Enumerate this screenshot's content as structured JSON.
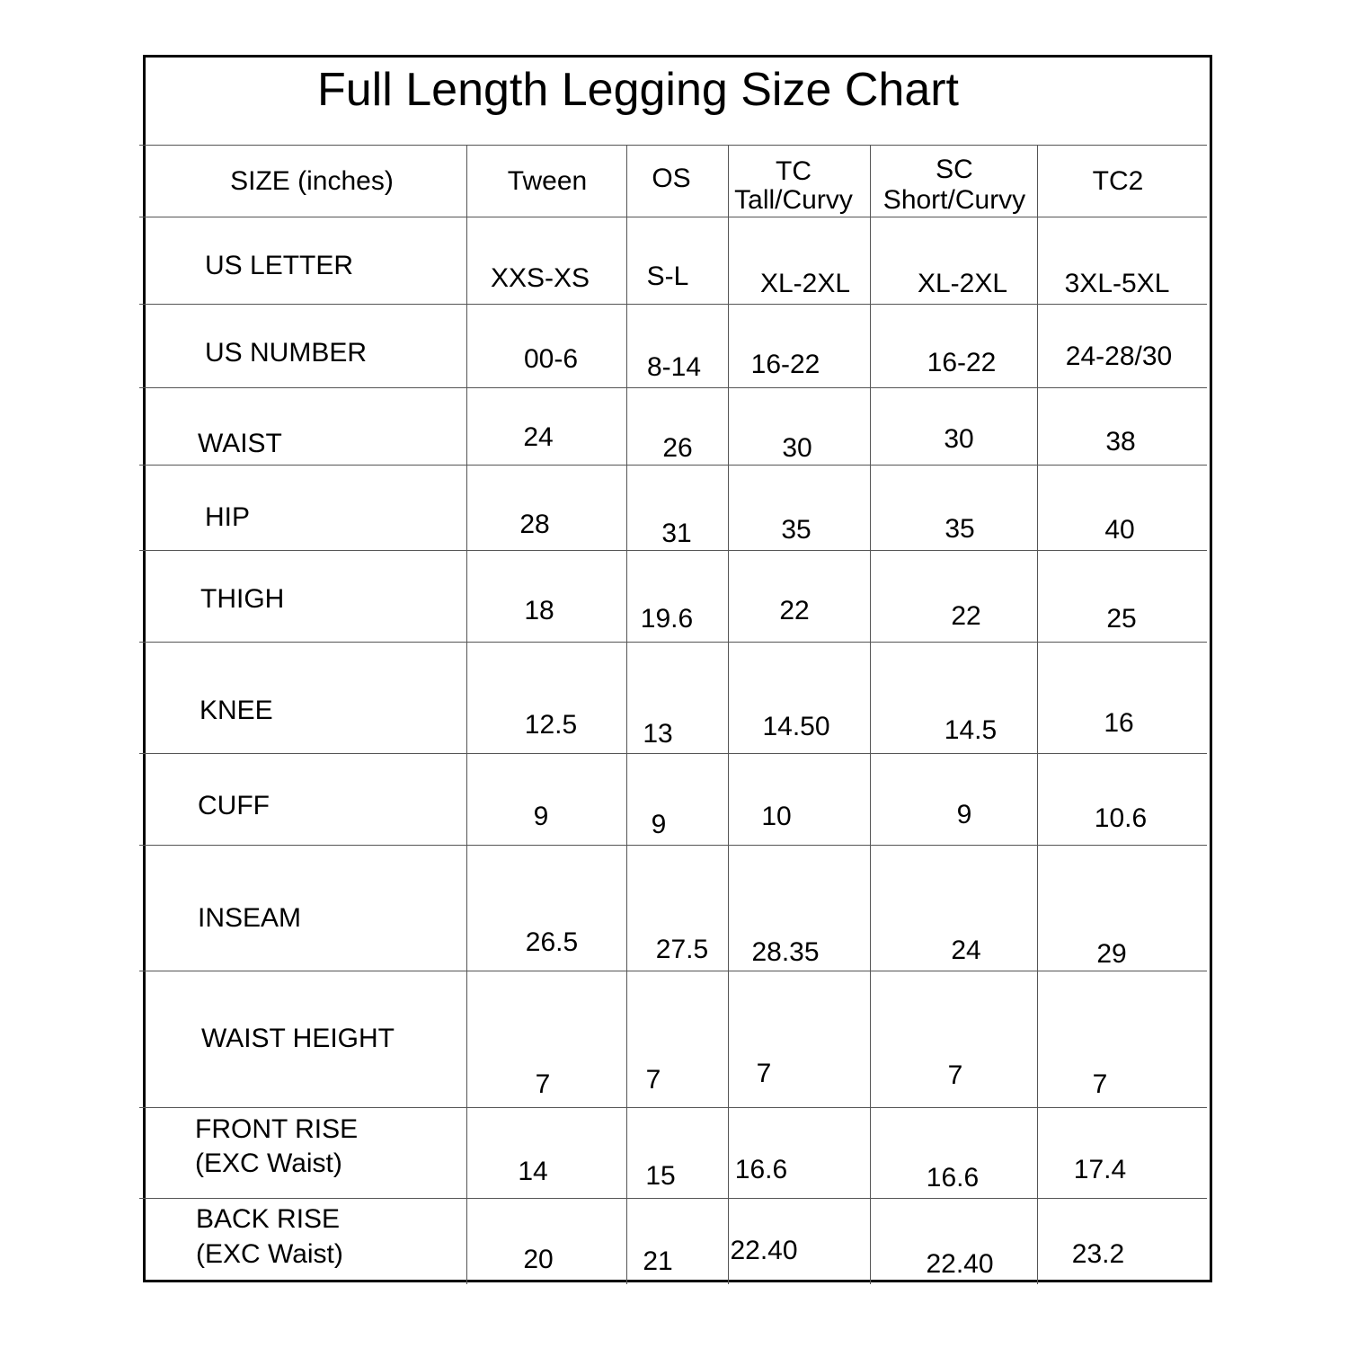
{
  "title": "Full Length Legging Size Chart",
  "header": {
    "size_label": "SIZE (inches)",
    "columns": [
      {
        "line1": "Tween",
        "line2": ""
      },
      {
        "line1": "OS",
        "line2": ""
      },
      {
        "line1": "TC",
        "line2": "Tall/Curvy"
      },
      {
        "line1": "SC",
        "line2": "Short/Curvy"
      },
      {
        "line1": "TC2",
        "line2": ""
      }
    ]
  },
  "rows": [
    {
      "label": [
        "US LETTER"
      ],
      "values": [
        "XXS-XS",
        "S-L",
        "XL-2XL",
        "XL-2XL",
        "3XL-5XL"
      ]
    },
    {
      "label": [
        "US NUMBER"
      ],
      "values": [
        "00-6",
        "8-14",
        "16-22",
        "16-22",
        "24-28/30"
      ]
    },
    {
      "label": [
        "WAIST"
      ],
      "values": [
        "24",
        "26",
        "30",
        "30",
        "38"
      ]
    },
    {
      "label": [
        "HIP"
      ],
      "values": [
        "28",
        "31",
        "35",
        "35",
        "40"
      ]
    },
    {
      "label": [
        "THIGH"
      ],
      "values": [
        "18",
        "19.6",
        "22",
        "22",
        "25"
      ]
    },
    {
      "label": [
        "KNEE"
      ],
      "values": [
        "12.5",
        "13",
        "14.50",
        "14.5",
        "16"
      ]
    },
    {
      "label": [
        "CUFF"
      ],
      "values": [
        "9",
        "9",
        "10",
        "9",
        "10.6"
      ]
    },
    {
      "label": [
        "INSEAM"
      ],
      "values": [
        "26.5",
        "27.5",
        "28.35",
        "24",
        "29"
      ]
    },
    {
      "label": [
        "WAIST HEIGHT"
      ],
      "values": [
        "7",
        "7",
        "7",
        "7",
        "7"
      ]
    },
    {
      "label": [
        "FRONT RISE",
        "(EXC Waist)"
      ],
      "values": [
        "14",
        "15",
        "16.6",
        "16.6",
        "17.4"
      ]
    },
    {
      "label": [
        "BACK RISE",
        "(EXC Waist)"
      ],
      "values": [
        "20",
        "21",
        "22.40",
        "22.40",
        "23.2"
      ]
    }
  ]
}
